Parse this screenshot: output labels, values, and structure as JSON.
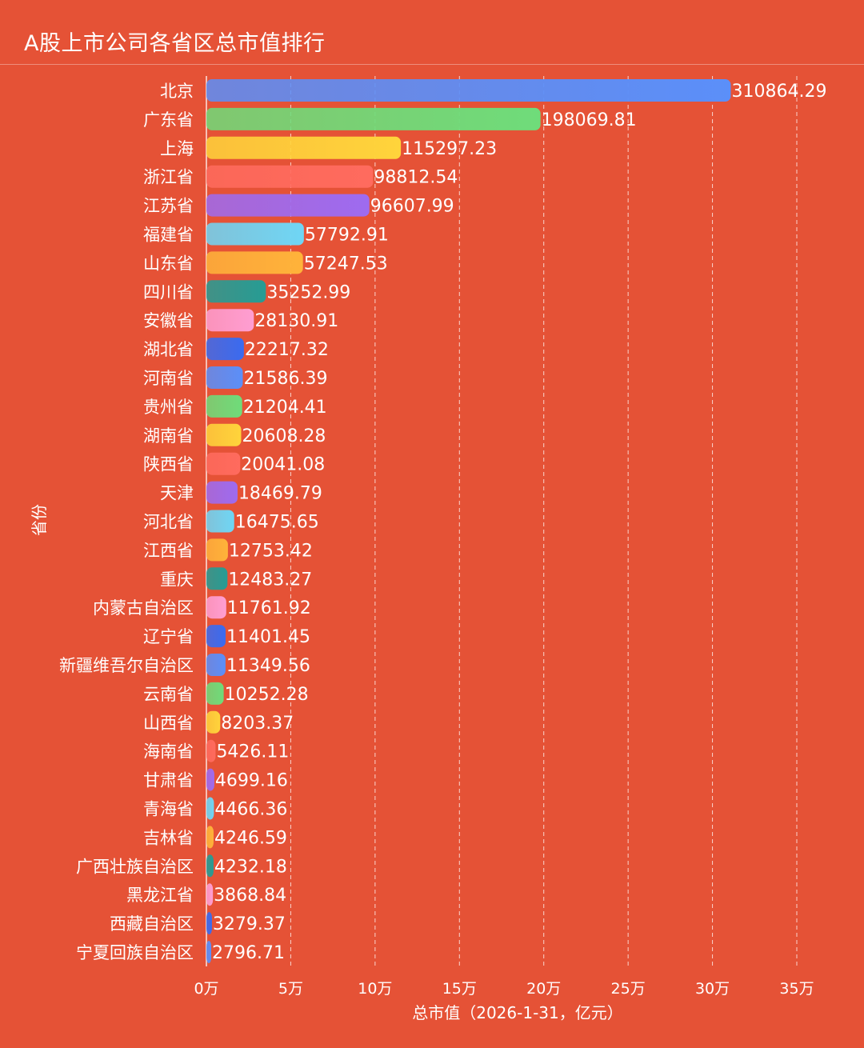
{
  "title": "A股上市公司各省区总市值排行",
  "colors": {
    "background": "#e55236",
    "palette": [
      "#5b8ff9",
      "#6fdc7a",
      "#ffd43b",
      "#ff6b5e",
      "#9e6bf0",
      "#6fd6f5",
      "#ffb33a",
      "#269c94",
      "#ff9ed2",
      "#3a6bf0"
    ]
  },
  "chart_data": {
    "type": "bar",
    "orientation": "horizontal",
    "title": "A股上市公司各省区总市值排行",
    "ylabel": "省份",
    "xlabel": "总市值（2026-1-31，亿元）",
    "xlim": [
      0,
      350000
    ],
    "xticks": [
      0,
      50000,
      100000,
      150000,
      200000,
      250000,
      300000,
      350000
    ],
    "xtick_labels": [
      "0万",
      "5万",
      "10万",
      "15万",
      "20万",
      "25万",
      "30万",
      "35万"
    ],
    "grid": "vertical dashed",
    "categories": [
      "北京",
      "广东省",
      "上海",
      "浙江省",
      "江苏省",
      "福建省",
      "山东省",
      "四川省",
      "安徽省",
      "湖北省",
      "河南省",
      "贵州省",
      "湖南省",
      "陕西省",
      "天津",
      "河北省",
      "江西省",
      "重庆",
      "内蒙古自治区",
      "辽宁省",
      "新疆维吾尔自治区",
      "云南省",
      "山西省",
      "海南省",
      "甘肃省",
      "青海省",
      "吉林省",
      "广西壮族自治区",
      "黑龙江省",
      "西藏自治区",
      "宁夏回族自治区"
    ],
    "values": [
      310864.29,
      198069.81,
      115297.23,
      98812.54,
      96607.99,
      57792.91,
      57247.53,
      35252.99,
      28130.91,
      22217.32,
      21586.39,
      21204.41,
      20608.28,
      20041.08,
      18469.79,
      16475.65,
      12753.42,
      12483.27,
      11761.92,
      11401.45,
      11349.56,
      10252.28,
      8203.37,
      5426.11,
      4699.16,
      4466.36,
      4246.59,
      4232.18,
      3868.84,
      3279.37,
      2796.71
    ],
    "value_labels": [
      "310864.29",
      "198069.81",
      "115297.23",
      "98812.54",
      "96607.99",
      "57792.91",
      "57247.53",
      "35252.99",
      "28130.91",
      "22217.32",
      "21586.39",
      "21204.41",
      "20608.28",
      "20041.08",
      "18469.79",
      "16475.65",
      "12753.42",
      "12483.27",
      "11761.92",
      "11401.45",
      "11349.56",
      "10252.28",
      "8203.37",
      "5426.11",
      "4699.16",
      "4466.36",
      "4246.59",
      "4232.18",
      "3868.84",
      "3279.37",
      "2796.71"
    ]
  }
}
